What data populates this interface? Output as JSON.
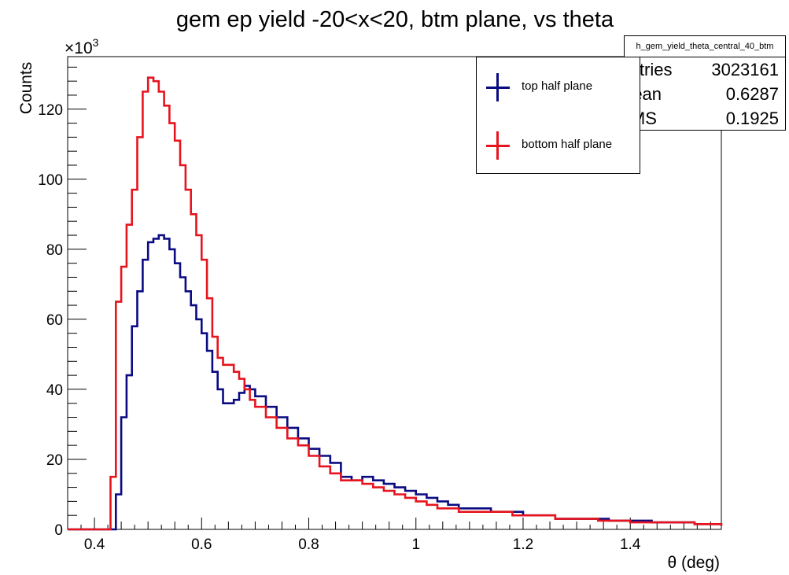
{
  "colors": {
    "top": "#0a0a82",
    "bottom": "#e6141e",
    "axis": "#000000"
  },
  "chart_data": {
    "type": "line",
    "style": "step histogram",
    "title": "gem ep yield -20<x<20, btm plane, vs theta",
    "xlabel": "θ (deg)",
    "ylabel": "Counts",
    "y_multiplier": "×10^3",
    "y_exponent_label": "×10",
    "y_exponent_power": "3",
    "xlim": [
      0.35,
      1.57
    ],
    "ylim": [
      0,
      135
    ],
    "x_ticks": [
      0.4,
      0.6,
      0.8,
      1.0,
      1.2,
      1.4
    ],
    "x_tick_labels": [
      "0.4",
      "0.6",
      "0.8",
      "1",
      "1.2",
      "1.4"
    ],
    "y_ticks": [
      0,
      20,
      40,
      60,
      80,
      100,
      120
    ],
    "y_tick_labels": [
      "0",
      "20",
      "40",
      "60",
      "80",
      "100",
      "120"
    ],
    "legend_position": "top-right",
    "series": [
      {
        "name": "top half plane",
        "color_key": "top",
        "points": [
          [
            0.35,
            0
          ],
          [
            0.43,
            0
          ],
          [
            0.44,
            10
          ],
          [
            0.45,
            32
          ],
          [
            0.46,
            44
          ],
          [
            0.47,
            58
          ],
          [
            0.48,
            68
          ],
          [
            0.49,
            77
          ],
          [
            0.5,
            82
          ],
          [
            0.51,
            83
          ],
          [
            0.52,
            84
          ],
          [
            0.53,
            83
          ],
          [
            0.54,
            80
          ],
          [
            0.55,
            76
          ],
          [
            0.56,
            72
          ],
          [
            0.57,
            68
          ],
          [
            0.58,
            64
          ],
          [
            0.59,
            60
          ],
          [
            0.6,
            56
          ],
          [
            0.61,
            51
          ],
          [
            0.62,
            45
          ],
          [
            0.63,
            40
          ],
          [
            0.64,
            36
          ],
          [
            0.65,
            36
          ],
          [
            0.66,
            37
          ],
          [
            0.67,
            39
          ],
          [
            0.68,
            41
          ],
          [
            0.69,
            40
          ],
          [
            0.7,
            38
          ],
          [
            0.72,
            35
          ],
          [
            0.74,
            32
          ],
          [
            0.76,
            29
          ],
          [
            0.78,
            26
          ],
          [
            0.8,
            23
          ],
          [
            0.82,
            21
          ],
          [
            0.84,
            19
          ],
          [
            0.86,
            15
          ],
          [
            0.88,
            14
          ],
          [
            0.9,
            15
          ],
          [
            0.92,
            14
          ],
          [
            0.94,
            13
          ],
          [
            0.96,
            12
          ],
          [
            0.98,
            11
          ],
          [
            1.0,
            10
          ],
          [
            1.02,
            9
          ],
          [
            1.04,
            8
          ],
          [
            1.06,
            7
          ],
          [
            1.08,
            6
          ],
          [
            1.1,
            6
          ],
          [
            1.12,
            6
          ],
          [
            1.14,
            5
          ],
          [
            1.16,
            5
          ],
          [
            1.18,
            5
          ],
          [
            1.2,
            4
          ],
          [
            1.22,
            4
          ],
          [
            1.24,
            4
          ],
          [
            1.26,
            3
          ],
          [
            1.28,
            3
          ],
          [
            1.3,
            3
          ],
          [
            1.32,
            3
          ],
          [
            1.34,
            3
          ],
          [
            1.36,
            2.5
          ],
          [
            1.38,
            2.5
          ],
          [
            1.4,
            2.5
          ],
          [
            1.44,
            2
          ],
          [
            1.48,
            2
          ],
          [
            1.52,
            1.5
          ],
          [
            1.57,
            1.5
          ]
        ]
      },
      {
        "name": "bottom half plane",
        "color_key": "bottom",
        "points": [
          [
            0.35,
            0
          ],
          [
            0.42,
            0
          ],
          [
            0.43,
            15
          ],
          [
            0.44,
            65
          ],
          [
            0.45,
            75
          ],
          [
            0.46,
            87
          ],
          [
            0.47,
            97
          ],
          [
            0.48,
            112
          ],
          [
            0.49,
            125
          ],
          [
            0.5,
            129
          ],
          [
            0.51,
            128
          ],
          [
            0.52,
            125
          ],
          [
            0.53,
            121
          ],
          [
            0.54,
            116
          ],
          [
            0.55,
            111
          ],
          [
            0.56,
            104
          ],
          [
            0.57,
            97
          ],
          [
            0.58,
            90
          ],
          [
            0.59,
            84
          ],
          [
            0.6,
            77
          ],
          [
            0.61,
            66
          ],
          [
            0.62,
            55
          ],
          [
            0.63,
            49
          ],
          [
            0.64,
            47
          ],
          [
            0.65,
            47
          ],
          [
            0.66,
            45
          ],
          [
            0.67,
            43
          ],
          [
            0.68,
            40
          ],
          [
            0.69,
            37
          ],
          [
            0.7,
            35
          ],
          [
            0.72,
            32
          ],
          [
            0.74,
            29
          ],
          [
            0.76,
            26
          ],
          [
            0.78,
            24
          ],
          [
            0.8,
            21
          ],
          [
            0.82,
            18
          ],
          [
            0.84,
            16
          ],
          [
            0.86,
            14
          ],
          [
            0.88,
            14
          ],
          [
            0.9,
            13
          ],
          [
            0.92,
            12
          ],
          [
            0.94,
            11
          ],
          [
            0.96,
            10
          ],
          [
            0.98,
            9
          ],
          [
            1.0,
            8
          ],
          [
            1.02,
            7
          ],
          [
            1.04,
            6
          ],
          [
            1.06,
            6
          ],
          [
            1.08,
            5
          ],
          [
            1.1,
            5
          ],
          [
            1.12,
            5
          ],
          [
            1.14,
            5
          ],
          [
            1.16,
            5
          ],
          [
            1.18,
            4
          ],
          [
            1.2,
            4
          ],
          [
            1.22,
            4
          ],
          [
            1.24,
            4
          ],
          [
            1.26,
            3
          ],
          [
            1.28,
            3
          ],
          [
            1.3,
            3
          ],
          [
            1.32,
            3
          ],
          [
            1.34,
            2.5
          ],
          [
            1.36,
            2.5
          ],
          [
            1.38,
            2.5
          ],
          [
            1.4,
            2
          ],
          [
            1.44,
            2
          ],
          [
            1.48,
            2
          ],
          [
            1.52,
            1.5
          ],
          [
            1.57,
            1
          ]
        ]
      }
    ]
  },
  "stats": {
    "title": "h_gem_yield_theta_central_40_btm",
    "rows": [
      {
        "key": "Entries",
        "value": "3023161"
      },
      {
        "key": "Mean",
        "value": "0.6287"
      },
      {
        "key": "RMS",
        "value": "0.1925"
      }
    ]
  },
  "legend": {
    "entries": [
      {
        "label": "top half plane",
        "color_key": "top"
      },
      {
        "label": "bottom half plane",
        "color_key": "bottom"
      }
    ]
  }
}
